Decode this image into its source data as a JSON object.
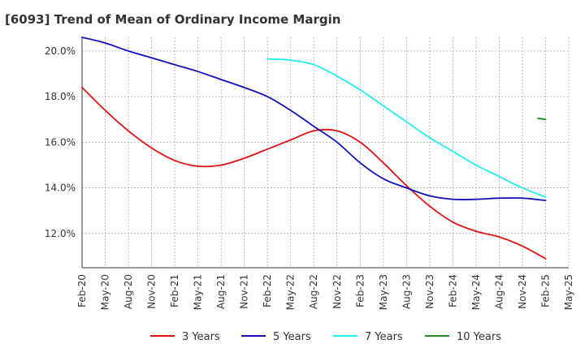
{
  "title": "[6093]  Trend of Mean of Ordinary Income Margin",
  "chart_data": {
    "type": "line",
    "title": "[6093]  Trend of Mean of Ordinary Income Margin",
    "xlabel": "",
    "ylabel": "",
    "ylim": [
      10.5,
      20.6
    ],
    "yticks": [
      12.0,
      14.0,
      16.0,
      18.0,
      20.0
    ],
    "ytick_labels": [
      "12.0%",
      "14.0%",
      "16.0%",
      "18.0%",
      "20.0%"
    ],
    "x_tick_labels": [
      "Feb-20",
      "May-20",
      "Aug-20",
      "Nov-20",
      "Feb-21",
      "May-21",
      "Aug-21",
      "Nov-21",
      "Feb-22",
      "May-22",
      "Aug-22",
      "Nov-22",
      "Feb-23",
      "May-23",
      "Aug-23",
      "Nov-23",
      "Feb-24",
      "May-24",
      "Aug-24",
      "Nov-24",
      "Feb-25",
      "May-25"
    ],
    "grid": true,
    "legend_position": "bottom",
    "series": [
      {
        "name": "3 Years",
        "color": "#dd1111",
        "points": [
          [
            "Feb-20",
            18.4
          ],
          [
            "May-20",
            17.4
          ],
          [
            "Aug-20",
            16.5
          ],
          [
            "Nov-20",
            15.75
          ],
          [
            "Feb-21",
            15.2
          ],
          [
            "May-21",
            14.95
          ],
          [
            "Aug-21",
            15.0
          ],
          [
            "Nov-21",
            15.3
          ],
          [
            "Feb-22",
            15.7
          ],
          [
            "May-22",
            16.1
          ],
          [
            "Aug-22",
            16.5
          ],
          [
            "Nov-22",
            16.5
          ],
          [
            "Feb-23",
            16.0
          ],
          [
            "May-23",
            15.1
          ],
          [
            "Aug-23",
            14.1
          ],
          [
            "Nov-23",
            13.2
          ],
          [
            "Feb-24",
            12.5
          ],
          [
            "May-24",
            12.1
          ],
          [
            "Aug-24",
            11.85
          ],
          [
            "Nov-24",
            11.45
          ],
          [
            "Feb-25",
            10.9
          ]
        ]
      },
      {
        "name": "5 Years",
        "color": "#1111bb",
        "points": [
          [
            "Feb-20",
            20.6
          ],
          [
            "May-20",
            20.35
          ],
          [
            "Aug-20",
            20.0
          ],
          [
            "Nov-20",
            19.7
          ],
          [
            "Feb-21",
            19.4
          ],
          [
            "May-21",
            19.1
          ],
          [
            "Aug-21",
            18.75
          ],
          [
            "Nov-21",
            18.4
          ],
          [
            "Feb-22",
            18.0
          ],
          [
            "May-22",
            17.4
          ],
          [
            "Aug-22",
            16.7
          ],
          [
            "Nov-22",
            16.0
          ],
          [
            "Feb-23",
            15.1
          ],
          [
            "May-23",
            14.4
          ],
          [
            "Aug-23",
            14.0
          ],
          [
            "Nov-23",
            13.65
          ],
          [
            "Feb-24",
            13.5
          ],
          [
            "May-24",
            13.5
          ],
          [
            "Aug-24",
            13.55
          ],
          [
            "Nov-24",
            13.55
          ],
          [
            "Feb-25",
            13.45
          ]
        ]
      },
      {
        "name": "7 Years",
        "color": "#22eeee",
        "points": [
          [
            "Feb-22",
            19.65
          ],
          [
            "May-22",
            19.6
          ],
          [
            "Aug-22",
            19.4
          ],
          [
            "Nov-22",
            18.9
          ],
          [
            "Feb-23",
            18.3
          ],
          [
            "May-23",
            17.6
          ],
          [
            "Aug-23",
            16.9
          ],
          [
            "Nov-23",
            16.2
          ],
          [
            "Feb-24",
            15.6
          ],
          [
            "May-24",
            15.0
          ],
          [
            "Aug-24",
            14.5
          ],
          [
            "Nov-24",
            14.0
          ],
          [
            "Feb-25",
            13.6
          ]
        ]
      },
      {
        "name": "10 Years",
        "color": "#228822",
        "points": [
          [
            "Jan-25",
            17.05
          ],
          [
            "Feb-25",
            17.0
          ]
        ]
      }
    ]
  }
}
